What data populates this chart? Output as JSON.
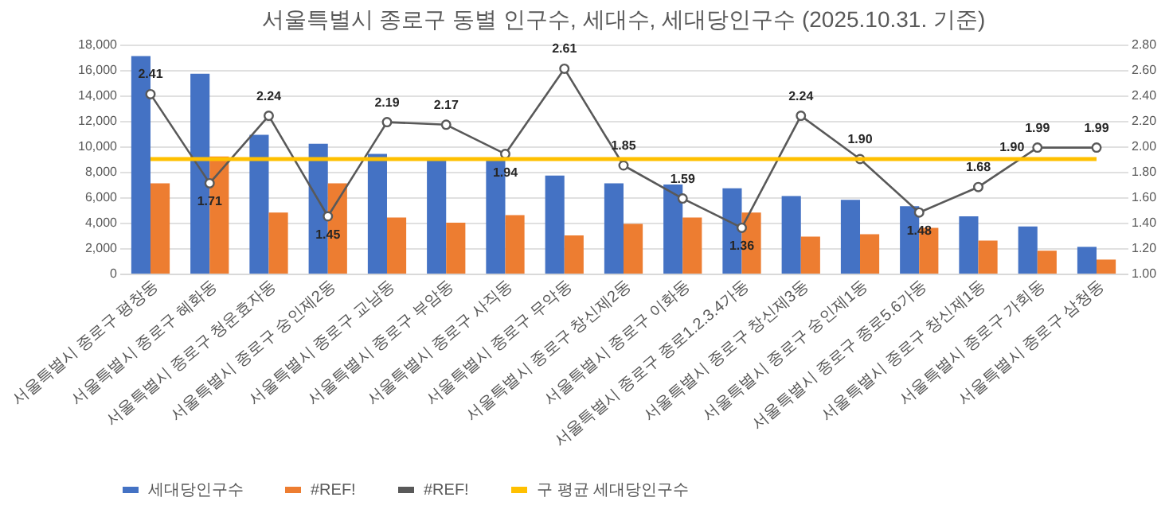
{
  "chart_data": {
    "type": "bar",
    "title": "서울특별시 종로구 동별 인구수, 세대수, 세대당인구수 (2025.10.31. 기준)",
    "categories": [
      "서울특별시 종로구 평창동",
      "서울특별시 종로구 혜화동",
      "서울특별시 종로구 청운효자동",
      "서울특별시 종로구 숭인제2동",
      "서울특별시 종로구 교남동",
      "서울특별시 종로구 부암동",
      "서울특별시 종로구 사직동",
      "서울특별시 종로구 무악동",
      "서울특별시 종로구 창신제2동",
      "서울특별시 종로구 이화동",
      "서울특별시 종로구 종로1.2.3.4가동",
      "서울특별시 종로구 창신제3동",
      "서울특별시 종로구 숭인제1동",
      "서울특별시 종로구 종로5.6가동",
      "서울특별시 종로구 창신제1동",
      "서울특별시 종로구 가회동",
      "서울특별시 종로구 삼청동"
    ],
    "series": [
      {
        "name": "세대당인구수",
        "color": "#4472c4",
        "values": [
          17100,
          15700,
          10900,
          10200,
          9400,
          9000,
          9000,
          7700,
          7100,
          7000,
          6700,
          6100,
          5800,
          5300,
          4500,
          3700,
          2100
        ]
      },
      {
        "name": "#REF!",
        "color": "#ed7d31",
        "values": [
          7100,
          9200,
          4800,
          7100,
          4400,
          4000,
          4600,
          3000,
          3900,
          4400,
          4800,
          2900,
          3100,
          3600,
          2600,
          1800,
          1100
        ]
      },
      {
        "name": "#REF!",
        "type": "line",
        "axis": "y2",
        "color": "#595959",
        "marker": "circle",
        "values": [
          2.41,
          1.71,
          2.24,
          1.45,
          2.19,
          2.17,
          1.94,
          2.61,
          1.85,
          1.59,
          1.36,
          2.24,
          1.9,
          1.48,
          1.68,
          1.99,
          1.99
        ],
        "value_labels": [
          "2.41",
          "1.71",
          "2.24",
          "1.45",
          "2.19",
          "2.17",
          "1.94",
          "2.61",
          "1.85",
          "1.59",
          "1.36",
          "2.24",
          "1.90",
          "1.48",
          "1.68",
          "1.99",
          "1.99"
        ]
      },
      {
        "name": "구 평균 세대당인구수",
        "type": "line",
        "axis": "y2",
        "color": "#ffc000",
        "values": [
          1.9,
          1.9,
          1.9,
          1.9,
          1.9,
          1.9,
          1.9,
          1.9,
          1.9,
          1.9,
          1.9,
          1.9,
          1.9,
          1.9,
          1.9,
          1.9,
          1.9
        ],
        "value_labels": [
          null,
          null,
          null,
          null,
          null,
          null,
          null,
          null,
          null,
          null,
          null,
          null,
          null,
          null,
          null,
          "1.90",
          null
        ]
      }
    ],
    "ylim": [
      0,
      18000
    ],
    "yticks": [
      {
        "value": 0,
        "label": "0"
      },
      {
        "value": 2000,
        "label": "2,000"
      },
      {
        "value": 4000,
        "label": "4,000"
      },
      {
        "value": 6000,
        "label": "6,000"
      },
      {
        "value": 8000,
        "label": "8,000"
      },
      {
        "value": 10000,
        "label": "10,000"
      },
      {
        "value": 12000,
        "label": "12,000"
      },
      {
        "value": 14000,
        "label": "14,000"
      },
      {
        "value": 16000,
        "label": "16,000"
      },
      {
        "value": 18000,
        "label": "18,000"
      }
    ],
    "y2lim": [
      1,
      2.8
    ],
    "y2ticks": [
      {
        "value": 1,
        "label": "1.00"
      },
      {
        "value": 1.2,
        "label": "1.20"
      },
      {
        "value": 1.4,
        "label": "1.40"
      },
      {
        "value": 1.6,
        "label": "1.60"
      },
      {
        "value": 1.8,
        "label": "1.80"
      },
      {
        "value": 2,
        "label": "2.00"
      },
      {
        "value": 2.2,
        "label": "2.20"
      },
      {
        "value": 2.4,
        "label": "2.40"
      },
      {
        "value": 2.6,
        "label": "2.60"
      },
      {
        "value": 2.8,
        "label": "2.80"
      }
    ],
    "grid": "y",
    "legend": "bottom"
  }
}
